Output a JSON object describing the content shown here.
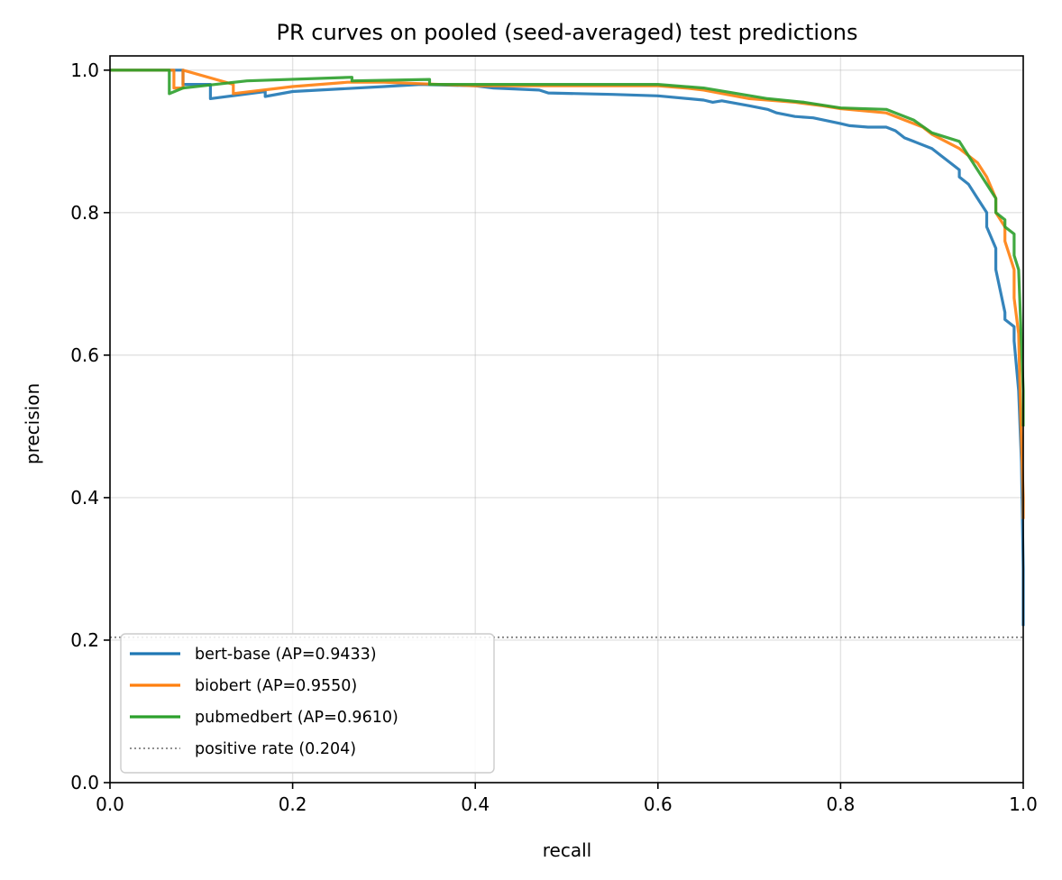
{
  "chart_data": {
    "type": "line",
    "title": "PR curves on pooled (seed-averaged) test predictions",
    "xlabel": "recall",
    "ylabel": "precision",
    "xlim": [
      0.0,
      1.0
    ],
    "ylim": [
      0.0,
      1.02
    ],
    "xticks": [
      0.0,
      0.2,
      0.4,
      0.6,
      0.8,
      1.0
    ],
    "yticks": [
      0.0,
      0.2,
      0.4,
      0.6,
      0.8,
      1.0
    ],
    "xtick_labels": [
      "0.0",
      "0.2",
      "0.4",
      "0.6",
      "0.8",
      "1.0"
    ],
    "ytick_labels": [
      "0.0",
      "0.2",
      "0.4",
      "0.6",
      "0.8",
      "1.0"
    ],
    "grid": true,
    "legend_position": "lower-left",
    "series": [
      {
        "name": "bert-base (AP=0.9433)",
        "color": "#1f77b4",
        "x": [
          0.0,
          0.08,
          0.08,
          0.11,
          0.11,
          0.17,
          0.17,
          0.2,
          0.3,
          0.34,
          0.4,
          0.42,
          0.47,
          0.48,
          0.55,
          0.6,
          0.65,
          0.66,
          0.67,
          0.7,
          0.72,
          0.73,
          0.75,
          0.77,
          0.8,
          0.81,
          0.83,
          0.85,
          0.86,
          0.87,
          0.88,
          0.9,
          0.91,
          0.92,
          0.93,
          0.93,
          0.94,
          0.95,
          0.96,
          0.96,
          0.97,
          0.97,
          0.98,
          0.98,
          0.99,
          0.99,
          0.995,
          0.998,
          1.0,
          1.0
        ],
        "y": [
          1.0,
          1.0,
          0.98,
          0.98,
          0.96,
          0.97,
          0.963,
          0.97,
          0.977,
          0.98,
          0.978,
          0.975,
          0.972,
          0.968,
          0.966,
          0.964,
          0.958,
          0.955,
          0.957,
          0.95,
          0.945,
          0.94,
          0.935,
          0.933,
          0.925,
          0.922,
          0.92,
          0.92,
          0.915,
          0.905,
          0.9,
          0.89,
          0.88,
          0.87,
          0.86,
          0.85,
          0.84,
          0.82,
          0.8,
          0.78,
          0.75,
          0.72,
          0.66,
          0.65,
          0.64,
          0.62,
          0.55,
          0.45,
          0.3,
          0.22
        ]
      },
      {
        "name": "biobert (AP=0.9550)",
        "color": "#ff7f0e",
        "x": [
          0.0,
          0.07,
          0.07,
          0.08,
          0.08,
          0.135,
          0.135,
          0.2,
          0.26,
          0.3,
          0.4,
          0.5,
          0.6,
          0.63,
          0.65,
          0.7,
          0.75,
          0.78,
          0.8,
          0.85,
          0.87,
          0.89,
          0.9,
          0.93,
          0.94,
          0.95,
          0.96,
          0.97,
          0.97,
          0.98,
          0.98,
          0.985,
          0.99,
          0.99,
          0.995,
          0.997,
          1.0,
          1.0
        ],
        "y": [
          1.0,
          1.0,
          0.975,
          0.975,
          1.0,
          0.98,
          0.967,
          0.977,
          0.983,
          0.983,
          0.978,
          0.978,
          0.978,
          0.975,
          0.972,
          0.96,
          0.955,
          0.95,
          0.946,
          0.94,
          0.93,
          0.92,
          0.91,
          0.89,
          0.88,
          0.87,
          0.85,
          0.82,
          0.8,
          0.78,
          0.76,
          0.74,
          0.72,
          0.68,
          0.63,
          0.52,
          0.4,
          0.37
        ]
      },
      {
        "name": "pubmedbert (AP=0.9610)",
        "color": "#2ca02c",
        "x": [
          0.0,
          0.065,
          0.065,
          0.08,
          0.15,
          0.265,
          0.265,
          0.35,
          0.35,
          0.42,
          0.5,
          0.6,
          0.65,
          0.72,
          0.76,
          0.8,
          0.85,
          0.88,
          0.9,
          0.93,
          0.94,
          0.95,
          0.96,
          0.97,
          0.97,
          0.98,
          0.98,
          0.99,
          0.99,
          0.995,
          1.0,
          1.0
        ],
        "y": [
          1.0,
          1.0,
          0.967,
          0.975,
          0.985,
          0.99,
          0.985,
          0.987,
          0.98,
          0.98,
          0.98,
          0.98,
          0.975,
          0.96,
          0.955,
          0.947,
          0.945,
          0.93,
          0.912,
          0.9,
          0.88,
          0.86,
          0.84,
          0.82,
          0.8,
          0.79,
          0.78,
          0.77,
          0.74,
          0.72,
          0.55,
          0.5
        ]
      },
      {
        "name": "positive rate (0.204)",
        "color": "#808080",
        "style": "dotted",
        "x": [
          0.0,
          1.0
        ],
        "y": [
          0.204,
          0.204
        ]
      }
    ]
  }
}
